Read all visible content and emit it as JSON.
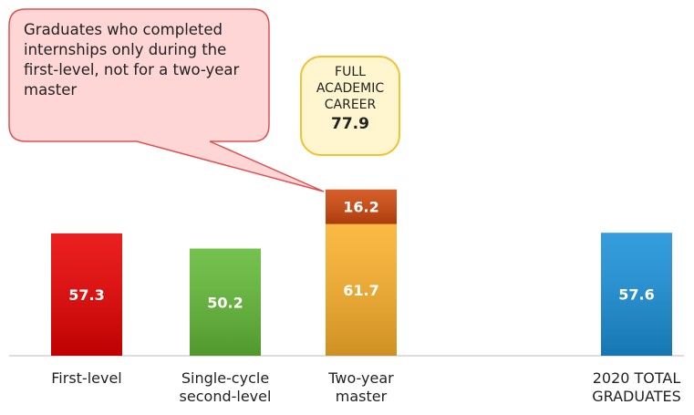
{
  "chart_data": {
    "type": "bar",
    "categories": [
      "First-level",
      "Single-cycle second-level",
      "Two-year master",
      "2020 TOTAL GRADUATES"
    ],
    "series": [
      {
        "colors": [
          "#e80000",
          "#62b936",
          "#fbb02a",
          "#1a90d9"
        ],
        "values": [
          57.3,
          50.2,
          61.7,
          57.6
        ]
      },
      {
        "color": "#d0480c",
        "values": [
          null,
          null,
          16.2,
          null
        ]
      }
    ],
    "ylim": [
      0,
      100
    ],
    "annotations": [
      "Graduates who completed internships only during the first-level, not for a two-year master",
      "FULL ACADEMIC CAREER",
      "77.9"
    ]
  }
}
